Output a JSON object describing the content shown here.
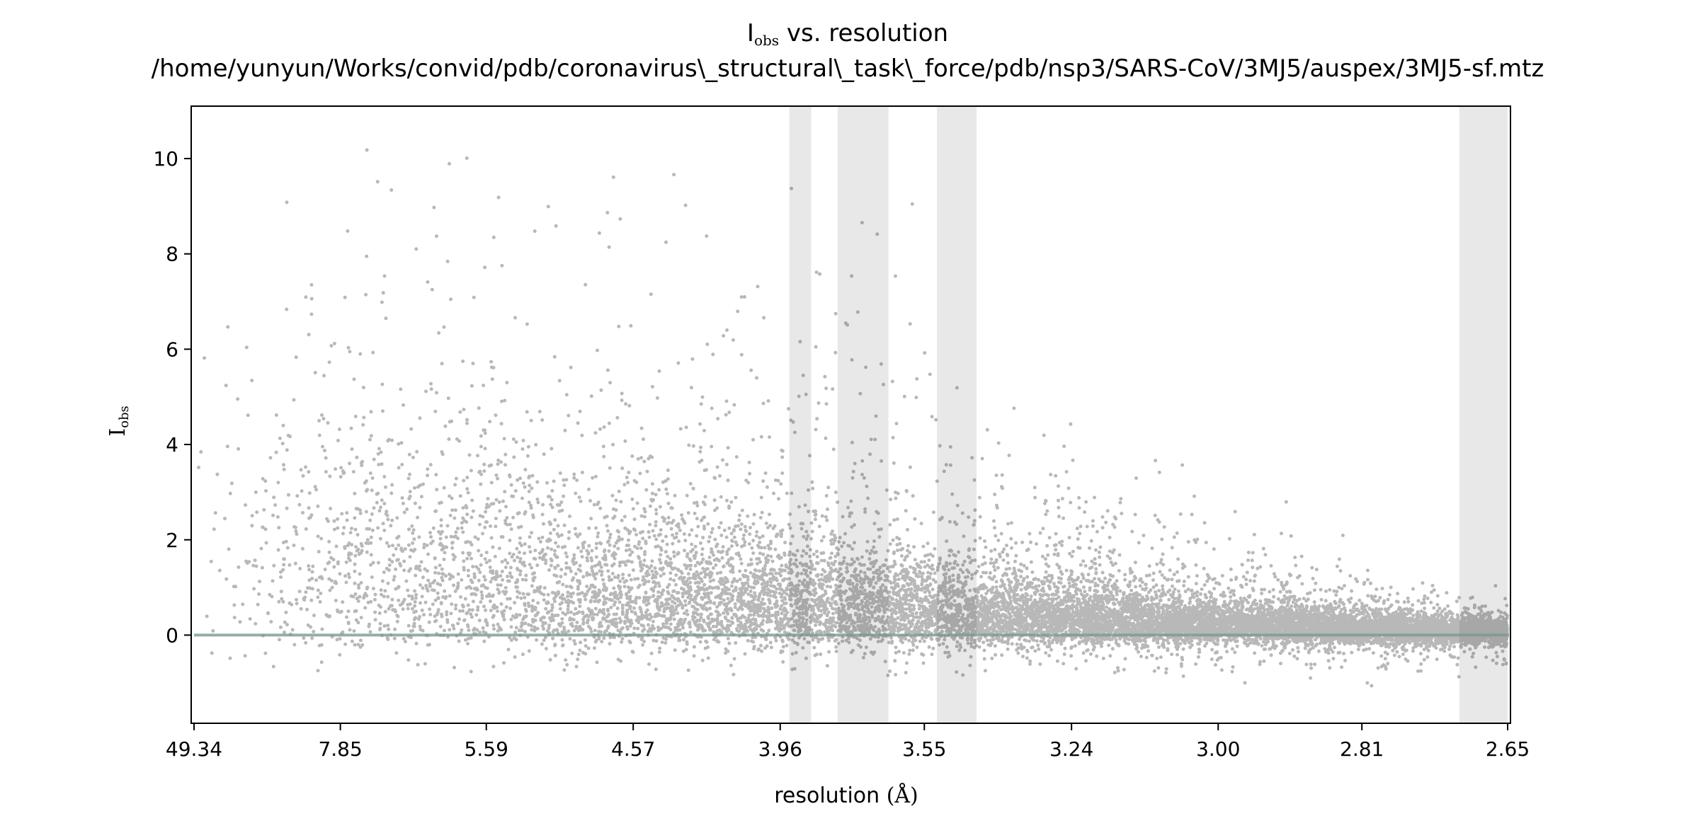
{
  "chart_data": {
    "type": "scatter",
    "title": {
      "line1_main": "I",
      "line1_sub": "obs",
      "line1_rest": " vs. resolution",
      "line2": "/home/yunyun/Works/convid/pdb/coronavirus\\_structural\\_task\\_force/pdb/nsp3/SARS-CoV/3MJ5/auspex/3MJ5-sf.mtz"
    },
    "xlabel": {
      "main": "resolution ",
      "unit": "(Å)"
    },
    "ylabel": {
      "main": "I",
      "sub": "obs"
    },
    "x_axis": {
      "quantity": "1/d^2 (Å^-2)",
      "scale": "reciprocal-square of resolution",
      "range_resolution": [
        49.34,
        2.65
      ],
      "tick_labels": [
        "49.34",
        "7.85",
        "5.59",
        "4.57",
        "3.96",
        "3.55",
        "3.24",
        "3.00",
        "2.81",
        "2.65"
      ]
    },
    "y_axis": {
      "range": [
        -1.85,
        11.1
      ],
      "ticks": [
        0,
        2,
        4,
        6,
        8,
        10
      ],
      "tick_labels": [
        "0",
        "2",
        "4",
        "6",
        "8",
        "10"
      ]
    },
    "ice_ring_bands_resolution": [
      [
        3.93,
        3.86
      ],
      [
        3.78,
        3.64
      ],
      [
        3.52,
        3.43
      ],
      [
        2.7,
        2.65
      ]
    ],
    "reference_line_y": 0,
    "point_color": "#000000",
    "point_opacity": 0.28,
    "band_color": "#e8e8e8",
    "reference_line_color": "#7a9a8a",
    "grid": false,
    "legend": "none"
  }
}
